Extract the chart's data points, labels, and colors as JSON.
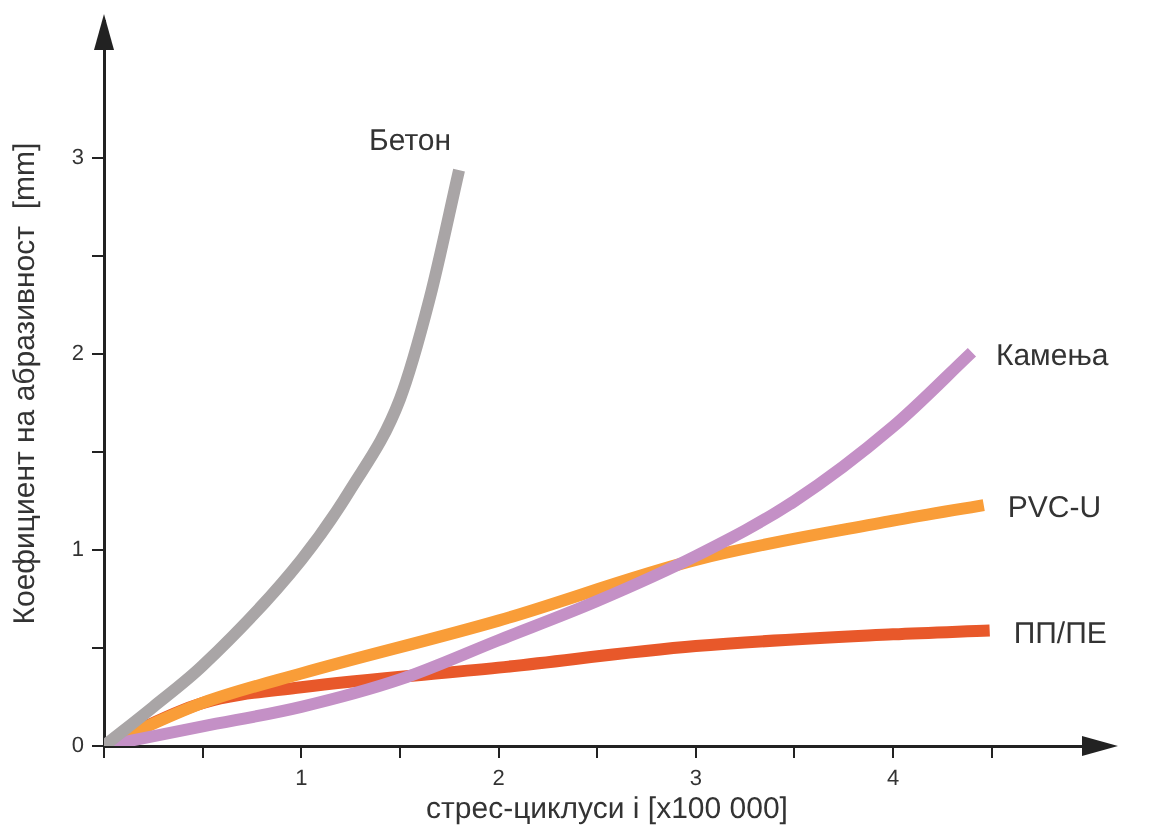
{
  "chart_data": {
    "type": "line",
    "xlabel": "стрес-циклуси i [x100 000]",
    "ylabel": "Коефициент на абразивност  [mm]",
    "xlim": [
      0,
      5.1
    ],
    "ylim": [
      0,
      3.7
    ],
    "xticks": [
      {
        "value": 0,
        "label": null
      },
      {
        "value": 0.5,
        "label": null
      },
      1,
      {
        "value": 1.5,
        "label": null
      },
      2,
      {
        "value": 2.5,
        "label": null
      },
      3,
      {
        "value": 3.5,
        "label": null
      },
      4,
      {
        "value": 4.5,
        "label": null
      }
    ],
    "yticks": [
      0,
      {
        "value": 0.5,
        "label": null
      },
      1,
      {
        "value": 1.5,
        "label": null
      },
      2,
      {
        "value": 2.5,
        "label": null
      },
      3
    ],
    "grid": false,
    "legend": false,
    "marker": "none",
    "line_style": "solid",
    "series": [
      {
        "name": "Бетон",
        "color": "#a9a5a6",
        "x": [
          0,
          0.25,
          0.5,
          1,
          1.25,
          1.5,
          1.65,
          1.8
        ],
        "values": [
          0,
          0.2,
          0.41,
          0.95,
          1.31,
          1.77,
          2.28,
          2.94
        ]
      },
      {
        "name": "Камења",
        "color": "#c490c6",
        "x": [
          0,
          0.5,
          1,
          1.5,
          2,
          2.5,
          3,
          3.5,
          4,
          4.4
        ],
        "values": [
          0,
          0.1,
          0.2,
          0.34,
          0.54,
          0.74,
          0.97,
          1.25,
          1.63,
          2.01
        ]
      },
      {
        "name": "PVC-U",
        "color": "#f99d38",
        "x": [
          0,
          0.5,
          1,
          2,
          3,
          4,
          4.46
        ],
        "values": [
          0,
          0.22,
          0.37,
          0.64,
          0.95,
          1.15,
          1.23
        ]
      },
      {
        "name": "ПП/ПЕ",
        "color": "#e8582a",
        "x": [
          0,
          0.5,
          1,
          2,
          3,
          4,
          4.49
        ],
        "values": [
          0,
          0.22,
          0.3,
          0.4,
          0.51,
          0.57,
          0.59
        ]
      }
    ]
  }
}
